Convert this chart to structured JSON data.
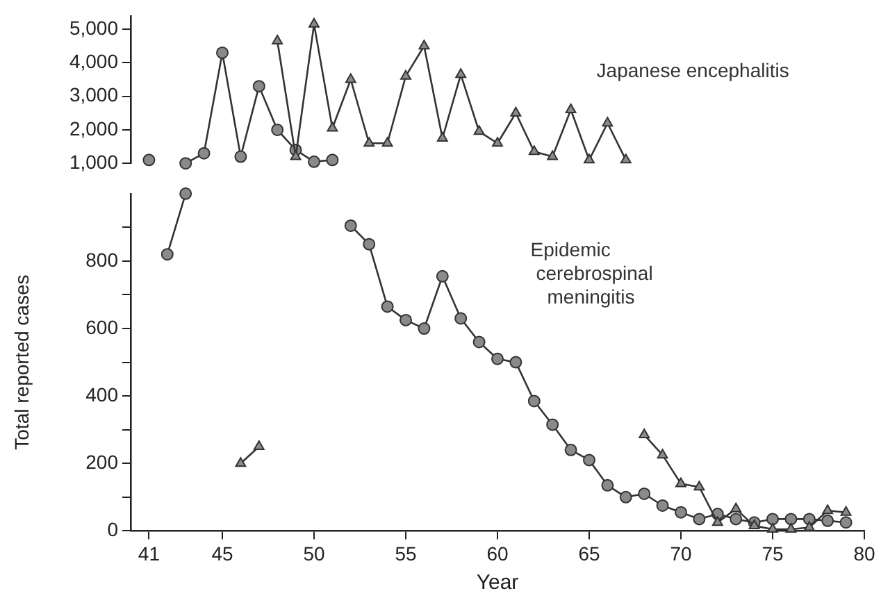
{
  "chart_data": [
    {
      "type": "line",
      "series": [
        {
          "name": "Japanese encephalitis",
          "color": "#333333",
          "marker": "triangle",
          "x": [
            48,
            49,
            50,
            51,
            52,
            53,
            54,
            55,
            56,
            57,
            58,
            59,
            60,
            61,
            62,
            63,
            64,
            65,
            66,
            67
          ],
          "values": [
            4650,
            1200,
            5150,
            2050,
            3500,
            1600,
            1600,
            3600,
            4500,
            1750,
            3650,
            1950,
            1600,
            2500,
            1350,
            1200,
            2600,
            1100,
            2200,
            1100
          ]
        },
        {
          "color": "#333333",
          "marker": "circle",
          "x": [
            41,
            42,
            43,
            44,
            45,
            46,
            47,
            48,
            49,
            50,
            51
          ],
          "values": [
            1100,
            null,
            1000,
            1300,
            4300,
            1200,
            3300,
            2000,
            1400,
            1050,
            1100
          ]
        }
      ],
      "xlim": [
        40,
        80
      ],
      "ylim": [
        1000,
        5400
      ],
      "yticks": [
        {
          "value": 1000,
          "label": "1,000"
        },
        {
          "value": 2000,
          "label": "2,000"
        },
        {
          "value": 3000,
          "label": "3,000"
        },
        {
          "value": 4000,
          "label": "4,000"
        },
        {
          "value": 5000,
          "label": "5,000"
        }
      ],
      "tick_labels": "y",
      "grid": false,
      "legend": false
    },
    {
      "type": "line",
      "xlabel": "Year",
      "ylabel": "Total reported cases",
      "series": [
        {
          "color": "#333333",
          "marker": "triangle",
          "x": [
            46,
            47,
            48,
            49,
            50,
            51,
            52,
            53,
            54,
            55,
            56,
            57,
            58,
            59,
            60,
            61,
            62,
            63,
            64,
            65,
            66,
            67,
            68,
            69,
            70,
            71,
            72,
            73,
            74,
            75,
            76,
            77,
            78,
            79
          ],
          "values": [
            200,
            250,
            null,
            null,
            null,
            null,
            null,
            null,
            null,
            null,
            null,
            null,
            null,
            null,
            null,
            null,
            null,
            null,
            null,
            null,
            null,
            null,
            285,
            225,
            140,
            130,
            25,
            65,
            15,
            5,
            5,
            10,
            60,
            55
          ]
        },
        {
          "name": "Epidemic cerebrospinal meningitis",
          "color": "#333333",
          "marker": "circle",
          "x": [
            42,
            43,
            44,
            45,
            46,
            47,
            48,
            49,
            50,
            51,
            52,
            53,
            54,
            55,
            56,
            57,
            58,
            59,
            60,
            61,
            62,
            63,
            64,
            65,
            66,
            67,
            68,
            69,
            70,
            71,
            72,
            73,
            74,
            75,
            76,
            77,
            78,
            79
          ],
          "values": [
            820,
            1000,
            null,
            null,
            null,
            null,
            null,
            null,
            null,
            null,
            905,
            850,
            665,
            625,
            600,
            755,
            630,
            560,
            510,
            500,
            385,
            315,
            240,
            210,
            135,
            100,
            110,
            75,
            55,
            35,
            50,
            35,
            25,
            35,
            35,
            35,
            30,
            25
          ]
        }
      ],
      "xlim": [
        40,
        80
      ],
      "ylim": [
        0,
        1000
      ],
      "xticks": [
        41,
        45,
        50,
        55,
        60,
        65,
        70,
        75,
        80
      ],
      "yticks": [
        0,
        {
          "value": 100,
          "label": null
        },
        200,
        {
          "value": 300,
          "label": null
        },
        400,
        {
          "value": 500,
          "label": null
        },
        600,
        {
          "value": 700,
          "label": null
        },
        800,
        {
          "value": 900,
          "label": null
        }
      ],
      "grid": false,
      "legend": false
    }
  ]
}
